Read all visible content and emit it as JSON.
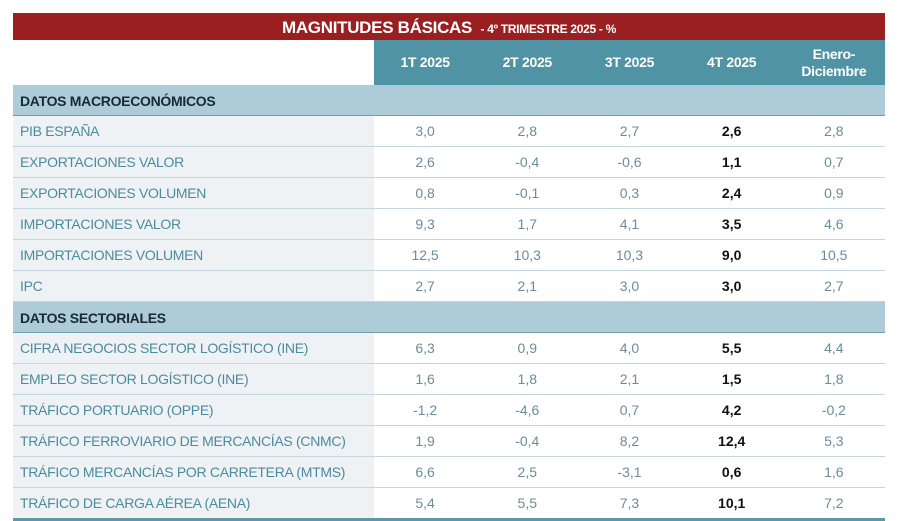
{
  "title": {
    "main": "MAGNITUDES BÁSICAS",
    "sub": "-  4º TRIMESTRE 2025 - %"
  },
  "columns": [
    "1T 2025",
    "2T 2025",
    "3T 2025",
    "4T 2025",
    "Enero-Diciembre"
  ],
  "sections": [
    {
      "label": "DATOS MACROECONÓMICOS",
      "rows": [
        {
          "label": "PIB ESPAÑA",
          "values": [
            "3,0",
            "2,8",
            "2,7",
            "2,6",
            "2,8"
          ]
        },
        {
          "label": "EXPORTACIONES VALOR",
          "values": [
            "2,6",
            "-0,4",
            "-0,6",
            "1,1",
            "0,7"
          ]
        },
        {
          "label": "EXPORTACIONES VOLUMEN",
          "values": [
            "0,8",
            "-0,1",
            "0,3",
            "2,4",
            "0,9"
          ]
        },
        {
          "label": "IMPORTACIONES VALOR",
          "values": [
            "9,3",
            "1,7",
            "4,1",
            "3,5",
            "4,6"
          ]
        },
        {
          "label": "IMPORTACIONES VOLUMEN",
          "values": [
            "12,5",
            "10,3",
            "10,3",
            "9,0",
            "10,5"
          ]
        },
        {
          "label": "IPC",
          "values": [
            "2,7",
            "2,1",
            "3,0",
            "3,0",
            "2,7"
          ]
        }
      ]
    },
    {
      "label": "DATOS SECTORIALES",
      "rows": [
        {
          "label": "CIFRA NEGOCIOS SECTOR LOGÍSTICO (INE)",
          "values": [
            "6,3",
            "0,9",
            "4,0",
            "5,5",
            "4,4"
          ]
        },
        {
          "label": "EMPLEO SECTOR LOGÍSTICO (INE)",
          "values": [
            "1,6",
            "1,8",
            "2,1",
            "1,5",
            "1,8"
          ]
        },
        {
          "label": "TRÁFICO PORTUARIO (OPPE)",
          "values": [
            "-1,2",
            "-4,6",
            "0,7",
            "4,2",
            "-0,2"
          ]
        },
        {
          "label": "TRÁFICO FERROVIARIO DE MERCANCÍAS (CNMC)",
          "values": [
            "1,9",
            "-0,4",
            "8,2",
            "12,4",
            "5,3"
          ]
        },
        {
          "label": "TRÁFICO MERCANCÍAS POR CARRETERA (MTMS)",
          "values": [
            "6,6",
            "2,5",
            "-3,1",
            "0,6",
            "1,6"
          ]
        },
        {
          "label": "TRÁFICO DE CARGA AÉREA (AENA)",
          "values": [
            "5,4",
            "5,5",
            "7,3",
            "10,1",
            "7,2"
          ]
        }
      ]
    }
  ]
}
